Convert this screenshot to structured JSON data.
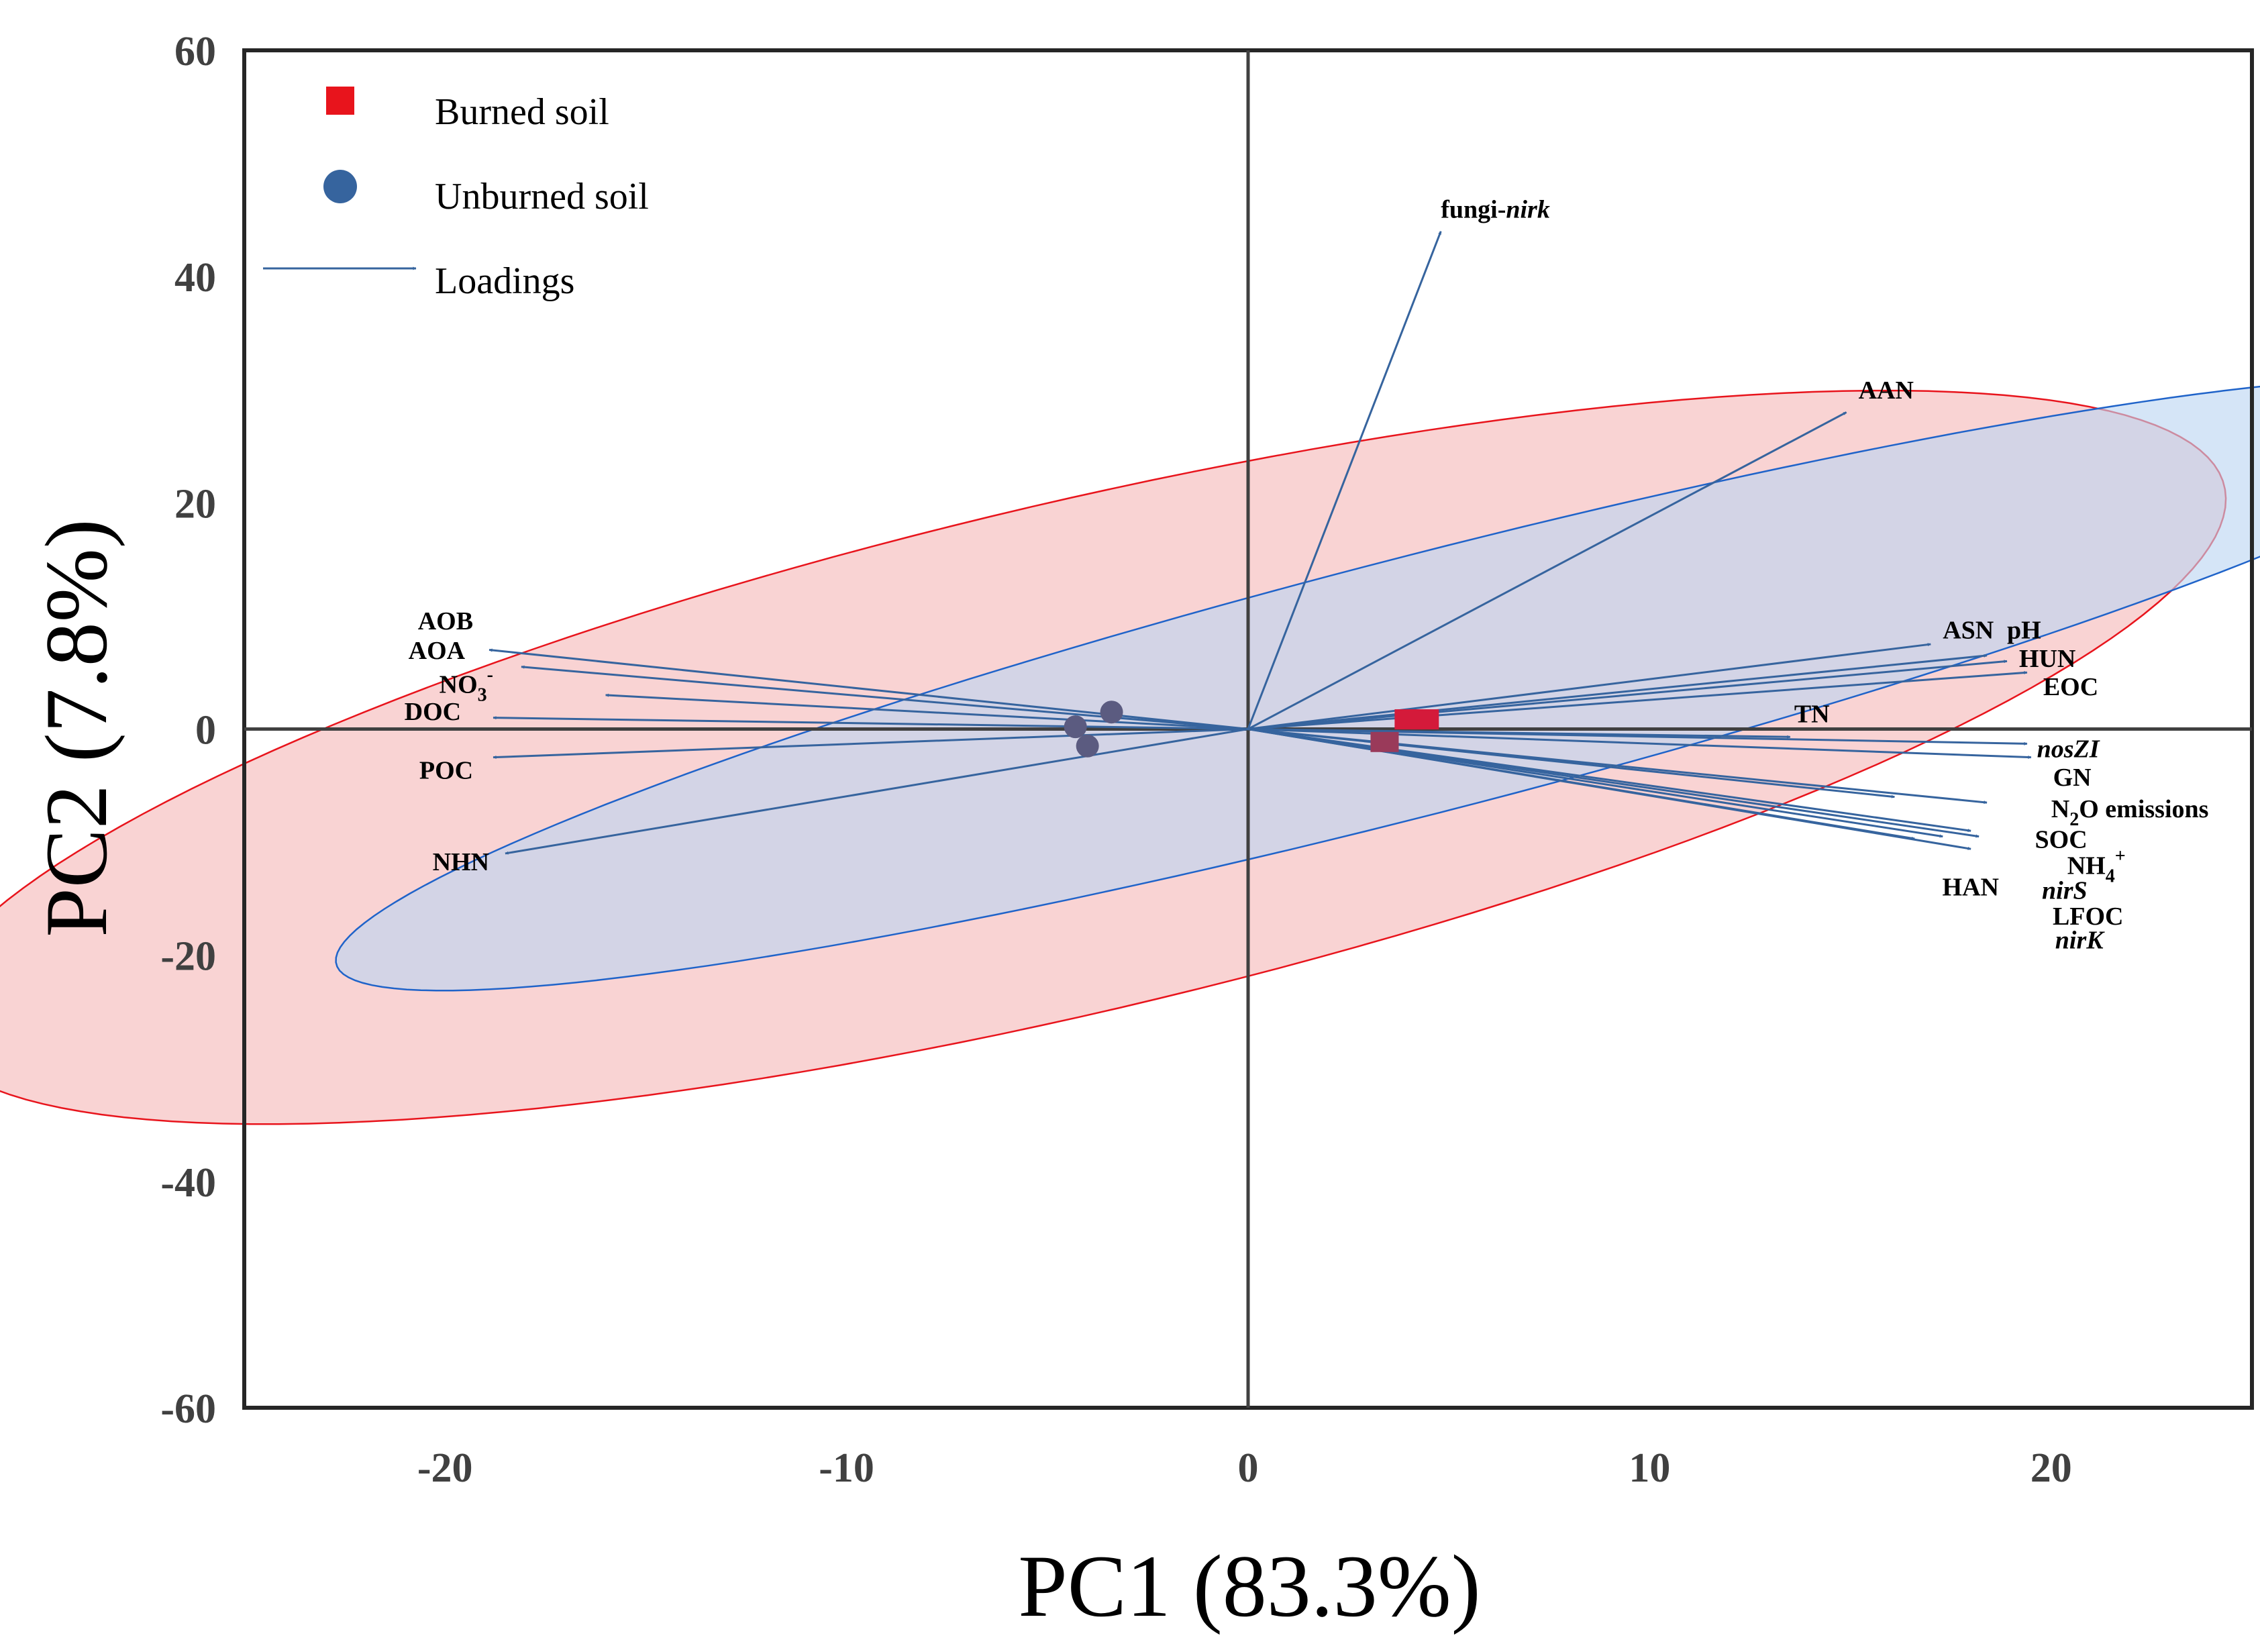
{
  "chart_data": {
    "type": "scatter",
    "xlabel": "PC1 (83.3%)",
    "ylabel": "PC2 (7.8%)",
    "xlim": [
      -25,
      25
    ],
    "ylim": [
      -60,
      60
    ],
    "x_ticks": [
      "-20",
      "-10",
      "0",
      "10",
      "20"
    ],
    "x_tick_values": [
      -20,
      -10,
      0,
      10,
      20
    ],
    "y_ticks": [
      "60",
      "40",
      "20",
      "0",
      "-20",
      "-40",
      "-60"
    ],
    "y_tick_values": [
      60,
      40,
      20,
      0,
      -20,
      -40,
      -60
    ],
    "grid": false,
    "legend_position": "top-left",
    "legend": [
      {
        "key": "burned",
        "label": "Burned soil",
        "marker": "square",
        "color": "#e8141c"
      },
      {
        "key": "unburned",
        "label": "Unburned soil",
        "marker": "circle",
        "color": "#36649e"
      },
      {
        "key": "loadings",
        "label": "Loadings",
        "marker": "arrow",
        "color": "#36649e"
      }
    ],
    "colors": {
      "burned_fill": "#f5b8b8",
      "burned_edge": "#e8141c",
      "unburned_fill": "#bcd5f2",
      "unburned_edge": "#1f63c9",
      "arrow": "#36649e",
      "overlap_point": "#5b5b80"
    },
    "ellipses": [
      {
        "group": "burned",
        "center": [
          -4.3,
          -2.5
        ],
        "semi_major": 40,
        "semi_minor": 16.5,
        "angle_deg": 50
      },
      {
        "group": "unburned",
        "center": [
          4.4,
          4.0
        ],
        "semi_major": 37.4,
        "semi_minor": 8.5,
        "angle_deg": 45
      }
    ],
    "points": [
      {
        "group": "burned",
        "x": 4.0,
        "y": 0.5
      },
      {
        "group": "burned",
        "x": 4.4,
        "y": 0.5
      },
      {
        "group": "burned",
        "x": 3.4,
        "y": -1.5
      },
      {
        "group": "unburned",
        "x": -3.4,
        "y": 1.5
      },
      {
        "group": "unburned",
        "x": -4.3,
        "y": 0.2
      },
      {
        "group": "unburned",
        "x": -4.0,
        "y": -1.5
      }
    ],
    "loadings": [
      {
        "label": "fungi-nirk",
        "x": 4.8,
        "y": 44.0
      },
      {
        "label": "AAN",
        "x": 14.9,
        "y": 28.0
      },
      {
        "label": "ASN",
        "x": 17.0,
        "y": 7.5
      },
      {
        "label": "pH",
        "x": 18.4,
        "y": 6.5
      },
      {
        "label": "HUN",
        "x": 18.9,
        "y": 6.0
      },
      {
        "label": "EOC",
        "x": 19.4,
        "y": 5.0
      },
      {
        "label": "TN",
        "x": 13.5,
        "y": -0.7
      },
      {
        "label": "nosZI",
        "x": 19.4,
        "y": -1.3
      },
      {
        "label": "GN",
        "x": 19.5,
        "y": -2.5
      },
      {
        "label": "N2O emissions",
        "x": 18.4,
        "y": -6.5
      },
      {
        "label": "SOC",
        "x": 18.0,
        "y": -9.0
      },
      {
        "label": "NH4+",
        "x": 18.2,
        "y": -9.5
      },
      {
        "label": "nirS",
        "x": 16.1,
        "y": -6.0
      },
      {
        "label": "LFOC",
        "x": 17.3,
        "y": -9.5
      },
      {
        "label": "nirK",
        "x": 16.6,
        "y": -9.7
      },
      {
        "label": "HAN",
        "x": 18.0,
        "y": -10.6
      },
      {
        "label": "AOB",
        "x": -18.9,
        "y": 7.0
      },
      {
        "label": "AOA",
        "x": -18.1,
        "y": 5.5
      },
      {
        "label": "NO3-",
        "x": -16.0,
        "y": 3.0
      },
      {
        "label": "DOC",
        "x": -18.8,
        "y": 1.0
      },
      {
        "label": "POC",
        "x": -18.8,
        "y": -2.5
      },
      {
        "label": "NHN",
        "x": -18.5,
        "y": -11.0
      }
    ],
    "labels": [
      {
        "text": "fungi-",
        "italic_text": "nirk",
        "x": 4.8,
        "y": 45.2,
        "anchor": "start"
      },
      {
        "text": "AAN",
        "x": 15.2,
        "y": 29.2,
        "anchor": "start"
      },
      {
        "text": "ASN",
        "x": 17.3,
        "y": 8.0,
        "anchor": "start"
      },
      {
        "text": "pH",
        "x": 18.9,
        "y": 8.0,
        "anchor": "start"
      },
      {
        "text": "HUN",
        "x": 19.2,
        "y": 5.5,
        "anchor": "start"
      },
      {
        "text": "EOC",
        "x": 19.8,
        "y": 3.0,
        "anchor": "start"
      },
      {
        "text": "TN",
        "x": 13.6,
        "y": 0.6,
        "anchor": "start"
      },
      {
        "text": "nosZI",
        "italic": true,
        "x": 21.2,
        "y": -2.5,
        "anchor": "end"
      },
      {
        "text": "GN",
        "x": 21.0,
        "y": -5.0,
        "anchor": "end"
      },
      {
        "text": "N",
        "sub": "2",
        "rest": "O emissions",
        "x": 20.0,
        "y": -7.8,
        "anchor": "start"
      },
      {
        "text": "SOC",
        "x": 20.9,
        "y": -10.5,
        "anchor": "end"
      },
      {
        "text": "NH",
        "sub": "4",
        "sup": "+",
        "x": 20.4,
        "y": -12.8,
        "anchor": "start"
      },
      {
        "text": "HAN",
        "x": 18.7,
        "y": -14.7,
        "anchor": "end"
      },
      {
        "text": "nirS",
        "italic": true,
        "x": 20.9,
        "y": -15.0,
        "anchor": "end"
      },
      {
        "text": "LFOC",
        "x": 21.8,
        "y": -17.3,
        "anchor": "end"
      },
      {
        "text": "nirK",
        "italic": true,
        "x": 21.3,
        "y": -19.4,
        "anchor": "end"
      },
      {
        "text": "AOB",
        "x": -19.3,
        "y": 8.8,
        "anchor": "end"
      },
      {
        "text": "AOA",
        "x": -19.5,
        "y": 6.2,
        "anchor": "end"
      },
      {
        "text": "NO",
        "sub": "3",
        "sup": "-",
        "x": -18.8,
        "y": 3.2,
        "anchor": "end"
      },
      {
        "text": "DOC",
        "x": -19.6,
        "y": 0.8,
        "anchor": "end"
      },
      {
        "text": "POC",
        "x": -19.3,
        "y": -4.4,
        "anchor": "end"
      },
      {
        "text": "NHN",
        "x": -18.9,
        "y": -12.5,
        "anchor": "end"
      }
    ]
  }
}
